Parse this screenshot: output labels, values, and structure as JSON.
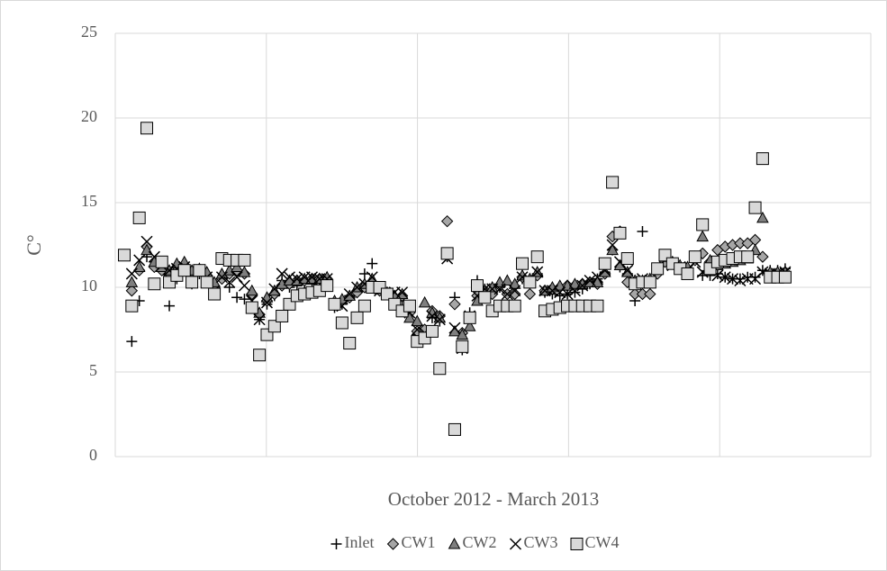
{
  "chart_data": {
    "type": "scatter",
    "y_label": "C°",
    "x_label": "October 2012 - March 2013",
    "xlim": [
      -1.2,
      99.4
    ],
    "ylim": [
      0,
      25
    ],
    "yticks": [
      0,
      5,
      10,
      15,
      20,
      25
    ],
    "grid": true,
    "legend": "bottom",
    "x": [
      0,
      1,
      2,
      3,
      4,
      5,
      6,
      7,
      8,
      9,
      10,
      11,
      12,
      13,
      14,
      15,
      16,
      17,
      18,
      19,
      20,
      21,
      22,
      23,
      24,
      25,
      26,
      27,
      28,
      29,
      30,
      31,
      32,
      33,
      34,
      35,
      36,
      37,
      38,
      39,
      40,
      41,
      42,
      43,
      44,
      45,
      46,
      47,
      48,
      49,
      50,
      51,
      52,
      53,
      54,
      55,
      56,
      57,
      58,
      59,
      60,
      61,
      62,
      63,
      64,
      65,
      66,
      67,
      68,
      69,
      70,
      71,
      72,
      73,
      74,
      75,
      76,
      77,
      78,
      79,
      80,
      81,
      82,
      83,
      84,
      85,
      86,
      87,
      88
    ],
    "series": [
      {
        "name": "Inlet",
        "marker": "plus",
        "color": "#000000",
        "values": [
          11.9,
          6.8,
          9.2,
          11.8,
          11.5,
          11,
          8.9,
          10.5,
          11,
          10.2,
          10.8,
          10.5,
          9.6,
          10.5,
          10,
          9.4,
          9.3,
          9,
          8.1,
          9,
          9.5,
          10.4,
          10,
          10.1,
          10.2,
          10.2,
          10.1,
          10.3,
          8.8,
          9,
          9.5,
          9.8,
          10.8,
          11.4,
          10,
          9.6,
          9.5,
          9.2,
          8.8,
          7.2,
          7,
          8.2,
          8,
          11.8,
          9.4,
          6.3,
          8.5,
          10.4,
          9.9,
          9.7,
          10,
          9.6,
          9.6,
          10.5,
          10.2,
          10.8,
          9.7,
          9.6,
          9.5,
          9.6,
          9.7,
          9.9,
          10.2,
          10.5,
          10.9,
          12.2,
          11.2,
          10.8,
          9.2,
          13.3,
          10.2,
          10.9,
          11.5,
          11.5,
          11.3,
          10.9,
          11.8,
          10.7,
          10.7,
          10.8,
          10.6,
          10.5,
          10.5,
          10.6,
          10.6,
          11,
          11,
          11,
          11.1
        ]
      },
      {
        "name": "CW1",
        "marker": "diamond",
        "color": "#a6a6a6",
        "values": [
          11.9,
          9.8,
          11,
          12.4,
          11.2,
          11,
          10.8,
          11.2,
          11.3,
          10.8,
          11,
          10.7,
          10,
          10.5,
          10.8,
          11,
          10.8,
          9.6,
          8.4,
          9.2,
          9.6,
          10.1,
          10.2,
          10.4,
          10.4,
          10.5,
          10.5,
          10.5,
          9.1,
          9.2,
          9.4,
          9.7,
          10,
          10.2,
          9.8,
          9.6,
          9.4,
          9.5,
          8.5,
          7.4,
          7.5,
          8.6,
          8.3,
          13.9,
          9,
          7.3,
          8.2,
          9.5,
          9.8,
          9.6,
          10.1,
          9.6,
          9.6,
          10.6,
          9.6,
          10.7,
          9.8,
          9.9,
          10,
          10.1,
          10.1,
          10.2,
          10.3,
          10.2,
          10.8,
          13,
          13.3,
          10.3,
          9.6,
          9.6,
          9.6,
          10.8,
          11.5,
          11.4,
          11.2,
          11,
          11.6,
          12,
          11.5,
          12.2,
          12.4,
          12.5,
          12.6,
          12.6,
          12.8,
          11.8,
          10.8,
          10.8,
          10.9
        ]
      },
      {
        "name": "CW2",
        "marker": "triangle",
        "color": "#7f7f7f",
        "values": [
          11.9,
          10.3,
          11.2,
          12.2,
          11.5,
          11.2,
          11,
          11.4,
          11.5,
          11,
          11.1,
          10.9,
          10.3,
          10.8,
          11,
          11.2,
          10.9,
          9.8,
          8.5,
          9.4,
          9.8,
          10.2,
          10.4,
          10.4,
          10.5,
          10.5,
          10.5,
          10.6,
          9.2,
          9.3,
          9.5,
          10,
          10.2,
          10.5,
          9.9,
          9.7,
          9.5,
          9.6,
          8.2,
          8,
          9.1,
          8.5,
          8.2,
          12,
          7.4,
          7.2,
          7.7,
          9.2,
          9.8,
          10,
          10.3,
          10.4,
          10.2,
          10.7,
          10.5,
          10.9,
          9.8,
          10,
          10.1,
          10.1,
          10.2,
          10.2,
          10.3,
          10.3,
          10.9,
          12.2,
          11.3,
          10.9,
          10.4,
          10.4,
          10.5,
          11.1,
          11.8,
          11.5,
          11.3,
          11.2,
          11.8,
          13,
          11.6,
          11.3,
          11.4,
          11.5,
          11.6,
          11.7,
          12.2,
          14.1,
          10.9,
          10.9,
          10.9
        ]
      },
      {
        "name": "CW3",
        "marker": "cross",
        "color": "#000000",
        "values": [
          11.9,
          10.8,
          11.6,
          12.7,
          11.8,
          11.3,
          11,
          11.1,
          11.2,
          10.6,
          10.9,
          10.6,
          9.8,
          10.6,
          10.3,
          10.6,
          10.1,
          9.2,
          8.1,
          9.1,
          9.9,
          10.8,
          10.6,
          10.5,
          10.6,
          10.6,
          10.5,
          10.5,
          9,
          8.9,
          9.6,
          10,
          10.2,
          10.6,
          9.8,
          9.6,
          9.7,
          9.7,
          8.5,
          7.5,
          7.3,
          8.3,
          8.1,
          11.7,
          7.6,
          6.4,
          8.3,
          9.5,
          9.9,
          9.9,
          9.9,
          9.6,
          9.8,
          10.6,
          10.3,
          10.9,
          9.8,
          9.8,
          9.7,
          9.6,
          9.8,
          10.1,
          10.4,
          10.6,
          11,
          12.5,
          11.5,
          11,
          10.3,
          10.5,
          10.4,
          11.1,
          11.6,
          11.3,
          11.2,
          11,
          11.5,
          10.9,
          11,
          10.7,
          10.6,
          10.5,
          10.4,
          10.5,
          10.5,
          10.9,
          10.8,
          10.8,
          10.9
        ]
      },
      {
        "name": "CW4",
        "marker": "square",
        "color": "#d9d9d9",
        "values": [
          11.9,
          8.9,
          14.1,
          19.4,
          10.2,
          11.5,
          10.3,
          10.7,
          11,
          10.3,
          11,
          10.3,
          9.6,
          11.7,
          11.6,
          11.6,
          11.6,
          8.8,
          6,
          7.2,
          7.7,
          8.3,
          9,
          9.5,
          9.6,
          9.7,
          9.8,
          10.1,
          9,
          7.9,
          6.7,
          8.2,
          8.9,
          10,
          10,
          9.6,
          9,
          8.6,
          8.9,
          6.8,
          7,
          7.4,
          5.2,
          12,
          1.6,
          6.5,
          8.2,
          10.1,
          9.4,
          8.6,
          8.9,
          8.9,
          8.9,
          11.4,
          10.3,
          11.8,
          8.6,
          8.7,
          8.8,
          8.9,
          8.9,
          8.9,
          8.9,
          8.9,
          11.4,
          16.2,
          13.2,
          11.7,
          10.2,
          10.3,
          10.3,
          11.1,
          11.9,
          11.4,
          11.1,
          10.8,
          11.8,
          13.7,
          11.1,
          11.5,
          11.6,
          11.7,
          11.8,
          11.8,
          14.7,
          17.6,
          10.6,
          10.6,
          10.6
        ]
      }
    ]
  }
}
